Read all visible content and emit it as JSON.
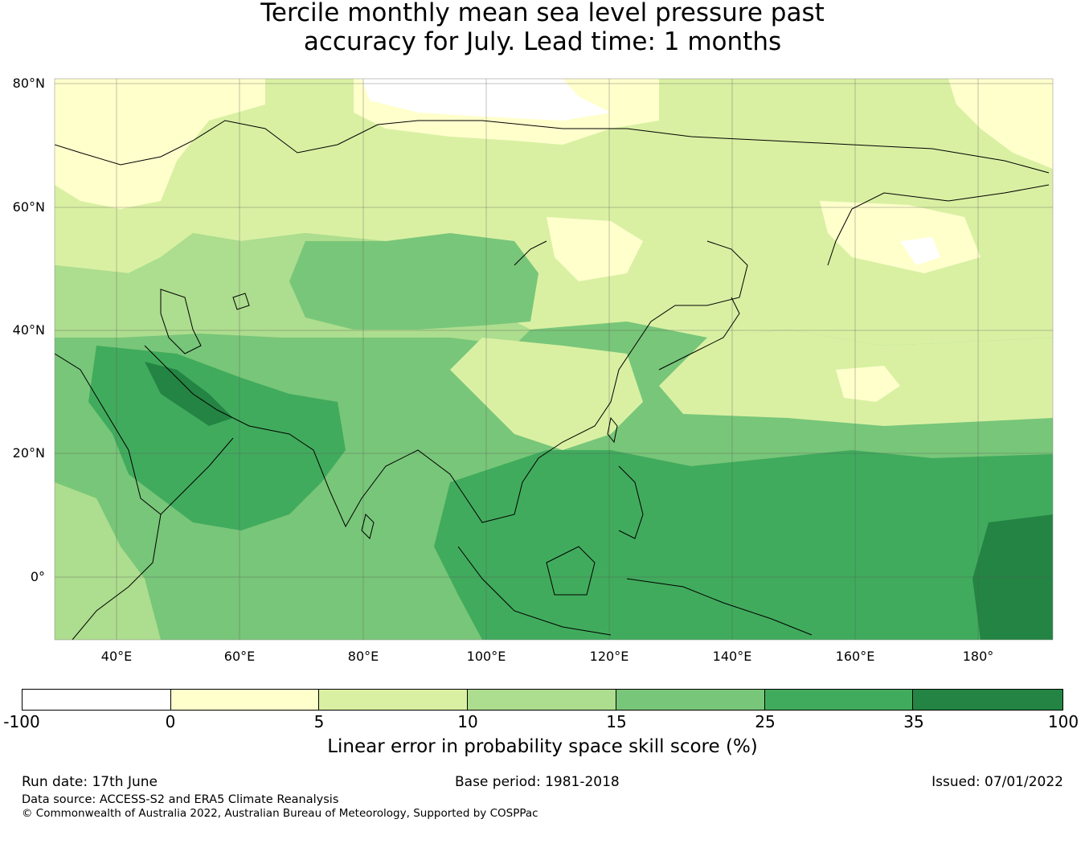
{
  "title_line1": "Tercile monthly mean sea level pressure past",
  "title_line2": "accuracy for July. Lead time: 1 months",
  "latitude_labels": [
    "80°N",
    "60°N",
    "40°N",
    "20°N",
    "0°"
  ],
  "longitude_labels": [
    "40°E",
    "60°E",
    "80°E",
    "100°E",
    "120°E",
    "140°E",
    "160°E",
    "180°"
  ],
  "map_extent": {
    "lon_min": 30,
    "lon_max": 192,
    "lat_min": -10,
    "lat_max": 81
  },
  "colorbar": {
    "label": "Linear error in probability space skill score (%)",
    "ticks": [
      "-100",
      "0",
      "5",
      "10",
      "15",
      "25",
      "35",
      "100"
    ],
    "bins": [
      {
        "range": "-100 to 0",
        "color": "#ffffff"
      },
      {
        "range": "0 to 5",
        "color": "#ffffcc"
      },
      {
        "range": "5 to 10",
        "color": "#d9f0a3"
      },
      {
        "range": "10 to 15",
        "color": "#addd8e"
      },
      {
        "range": "15 to 25",
        "color": "#78c679"
      },
      {
        "range": "25 to 35",
        "color": "#41ab5d"
      },
      {
        "range": "35 to 100",
        "color": "#238443"
      }
    ]
  },
  "footer": {
    "run_date": "Run date: 17th June",
    "base_period": "Base period: 1981-2018",
    "issued": "Issued: 07/01/2022",
    "data_source": "Data source: ACCESS-S2 and ERA5 Climate Reanalysis",
    "copyright": "© Commonwealth of Australia 2022, Australian Bureau of Meteorology, Supported by COSPPac"
  }
}
